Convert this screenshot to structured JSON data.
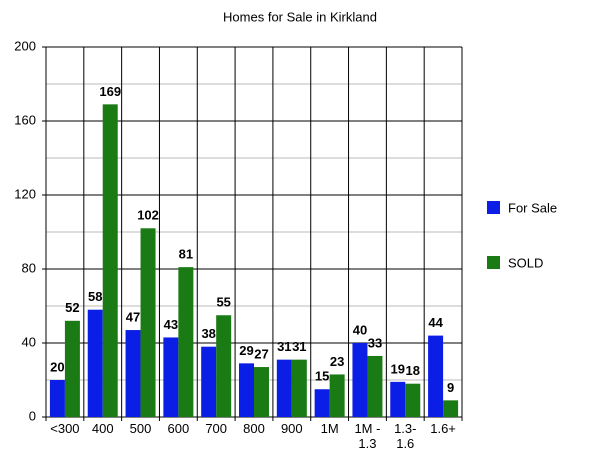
{
  "chart_data": {
    "type": "bar",
    "title": "Homes for Sale in Kirkland",
    "categories": [
      "<300",
      "400",
      "500",
      "600",
      "700",
      "800",
      "900",
      "1M",
      "1M - 1.3",
      "1.3- 1.6",
      "1.6+"
    ],
    "series": [
      {
        "name": "For Sale",
        "color": "#0a1ee6",
        "values": [
          20,
          58,
          47,
          43,
          38,
          29,
          31,
          15,
          40,
          19,
          44
        ]
      },
      {
        "name": "SOLD",
        "color": "#1a7a14",
        "values": [
          52,
          169,
          102,
          81,
          55,
          27,
          31,
          23,
          33,
          18,
          9
        ]
      }
    ],
    "ylim": [
      0,
      200
    ],
    "yticks": [
      0,
      40,
      80,
      120,
      160,
      200
    ],
    "grid": true,
    "legend": "right"
  }
}
